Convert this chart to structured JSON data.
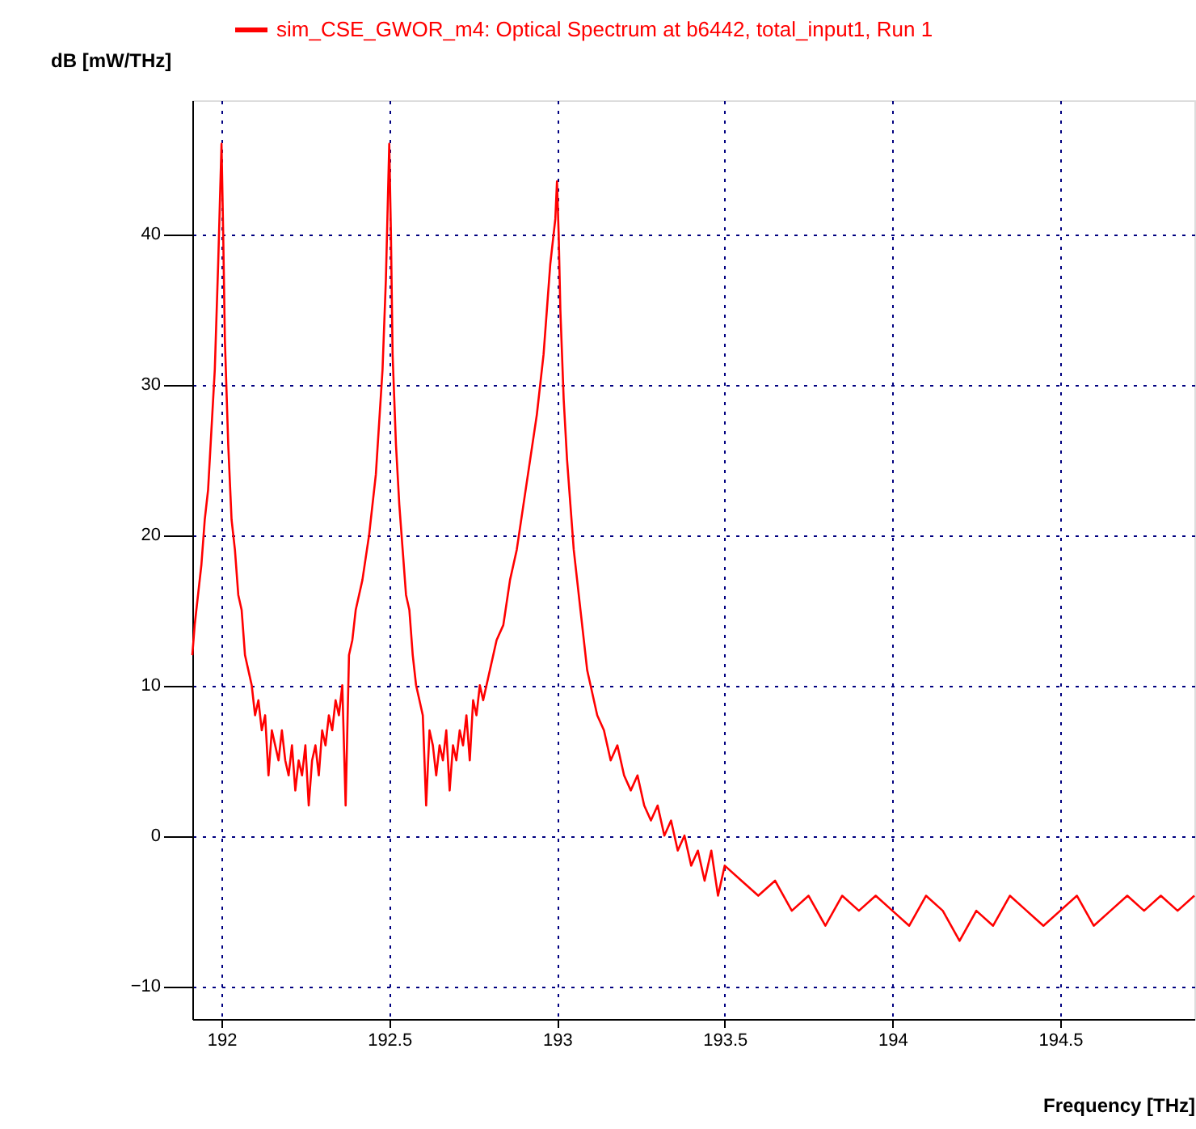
{
  "chart_data": {
    "type": "line",
    "xlabel": "Frequency [THz]",
    "ylabel": "dB [mW/THz]",
    "xlim": [
      191.913,
      194.9
    ],
    "ylim": [
      -12.2,
      48.9
    ],
    "xticks": [
      192,
      192.5,
      193,
      193.5,
      194,
      194.5
    ],
    "yticks": [
      -10,
      0,
      10,
      20,
      30,
      40
    ],
    "grid": true,
    "legend": "top",
    "line_style": "solid",
    "series": [
      {
        "name": "sim_CSE_GWOR_m4: Optical Spectrum at b6442, total_input1, Run 1",
        "color": "#ff0000",
        "x": [
          191.913,
          191.92,
          191.93,
          191.94,
          191.95,
          191.96,
          191.97,
          191.98,
          191.99,
          192.0,
          192.005,
          192.01,
          192.02,
          192.03,
          192.04,
          192.05,
          192.06,
          192.07,
          192.08,
          192.09,
          192.1,
          192.11,
          192.12,
          192.13,
          192.14,
          192.15,
          192.16,
          192.17,
          192.18,
          192.19,
          192.2,
          192.21,
          192.22,
          192.23,
          192.24,
          192.25,
          192.26,
          192.27,
          192.28,
          192.29,
          192.3,
          192.31,
          192.32,
          192.33,
          192.34,
          192.35,
          192.36,
          192.37,
          192.38,
          192.39,
          192.4,
          192.42,
          192.44,
          192.46,
          192.48,
          192.49,
          192.5,
          192.505,
          192.51,
          192.52,
          192.53,
          192.54,
          192.55,
          192.56,
          192.57,
          192.58,
          192.59,
          192.6,
          192.61,
          192.62,
          192.63,
          192.64,
          192.65,
          192.66,
          192.67,
          192.68,
          192.69,
          192.7,
          192.71,
          192.72,
          192.73,
          192.74,
          192.75,
          192.76,
          192.77,
          192.78,
          192.8,
          192.82,
          192.84,
          192.86,
          192.88,
          192.9,
          192.92,
          192.94,
          192.96,
          192.98,
          192.995,
          193.0,
          193.005,
          193.01,
          193.02,
          193.03,
          193.04,
          193.05,
          193.06,
          193.07,
          193.08,
          193.09,
          193.1,
          193.12,
          193.14,
          193.16,
          193.18,
          193.2,
          193.22,
          193.24,
          193.26,
          193.28,
          193.3,
          193.32,
          193.34,
          193.36,
          193.38,
          193.4,
          193.42,
          193.44,
          193.46,
          193.48,
          193.5,
          193.55,
          193.6,
          193.65,
          193.7,
          193.75,
          193.8,
          193.85,
          193.9,
          193.95,
          194.0,
          194.05,
          194.1,
          194.15,
          194.2,
          194.25,
          194.3,
          194.35,
          194.4,
          194.45,
          194.5,
          194.55,
          194.6,
          194.65,
          194.7,
          194.75,
          194.8,
          194.85,
          194.9
        ],
        "values": [
          12,
          14,
          16,
          18,
          21,
          23,
          27,
          31,
          38,
          46,
          40,
          33,
          26,
          21,
          19,
          16,
          15,
          12,
          11,
          10,
          8,
          9,
          7,
          8,
          4,
          7,
          6,
          5,
          7,
          5,
          4,
          6,
          3,
          5,
          4,
          6,
          2,
          5,
          6,
          4,
          7,
          6,
          8,
          7,
          9,
          8,
          10,
          2,
          12,
          13,
          15,
          17,
          20,
          24,
          31,
          37,
          46,
          40,
          32,
          26,
          22,
          19,
          16,
          15,
          12,
          10,
          9,
          8,
          2,
          7,
          6,
          4,
          6,
          5,
          7,
          3,
          6,
          5,
          7,
          6,
          8,
          5,
          9,
          8,
          10,
          9,
          11,
          13,
          14,
          17,
          19,
          22,
          25,
          28,
          32,
          38,
          41,
          43.5,
          40,
          35,
          29,
          25,
          22,
          19,
          17,
          15,
          13,
          11,
          10,
          8,
          7,
          5,
          6,
          4,
          3,
          4,
          2,
          1,
          2,
          0,
          1,
          -1,
          0,
          -2,
          -1,
          -3,
          -1,
          -4,
          -2,
          -3,
          -4,
          -3,
          -5,
          -4,
          -6,
          -4,
          -5,
          -4,
          -5,
          -6,
          -4,
          -5,
          -7,
          -5,
          -6,
          -4,
          -5,
          -6,
          -5,
          -4,
          -6,
          -5,
          -4,
          -5,
          -4,
          -5,
          -4
        ]
      }
    ]
  }
}
